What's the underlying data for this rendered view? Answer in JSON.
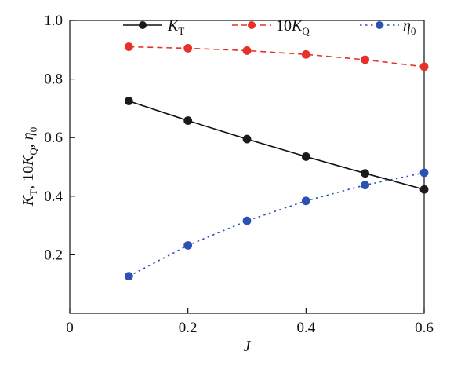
{
  "chart_data": {
    "type": "line",
    "x": [
      0.1,
      0.2,
      0.3,
      0.4,
      0.5,
      0.6
    ],
    "xlabel": "J",
    "ylabel": {
      "k": "K",
      "t_sub": "T",
      "sep1": ", 10",
      "kq": "K",
      "q_sub": "Q",
      "sep2": ", ",
      "eta": "η",
      "zero": "0"
    },
    "xlim": [
      0,
      0.6
    ],
    "ylim": [
      0.0,
      1.0
    ],
    "xticks": [
      0,
      0.2,
      0.4,
      0.6
    ],
    "xtick_labels": [
      "0",
      "0.2",
      "0.4",
      "0.6"
    ],
    "yticks": [
      0.2,
      0.4,
      0.6,
      0.8,
      1.0
    ],
    "ytick_labels": [
      "0.2",
      "0.4",
      "0.6",
      "0.8",
      "1.0"
    ],
    "grid": false,
    "legend_position": "top",
    "series": [
      {
        "name": "K_T",
        "legend": {
          "prefix": "",
          "main": "K",
          "sub": "T"
        },
        "values": [
          0.725,
          0.658,
          0.595,
          0.535,
          0.478,
          0.423
        ],
        "color": "#111111",
        "marker_color": "#1a1a1a",
        "line_style": "solid"
      },
      {
        "name": "10K_Q",
        "legend": {
          "prefix": "10",
          "main": "K",
          "sub": "Q"
        },
        "values": [
          0.91,
          0.905,
          0.897,
          0.884,
          0.866,
          0.842
        ],
        "color": "#e8302a",
        "marker_color": "#e8302a",
        "line_style": "dashed"
      },
      {
        "name": "η_0",
        "legend": {
          "prefix": "",
          "main": "η",
          "sub": "0"
        },
        "values": [
          0.127,
          0.232,
          0.316,
          0.384,
          0.438,
          0.48
        ],
        "color": "#2b52b3",
        "marker_color": "#2b52b3",
        "line_style": "dotted"
      }
    ]
  }
}
